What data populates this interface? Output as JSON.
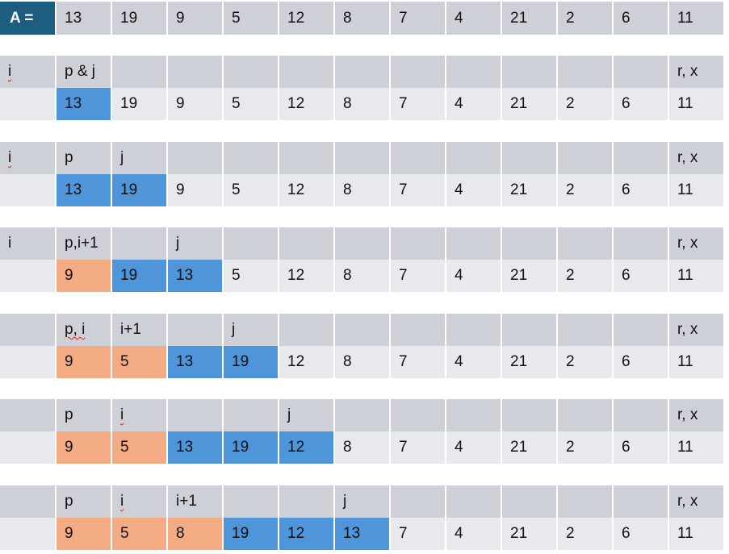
{
  "header_label": "A =",
  "array": [
    "13",
    "19",
    "9",
    "5",
    "12",
    "8",
    "7",
    "4",
    "21",
    "2",
    "6",
    "11"
  ],
  "colors": {
    "header": "#1d5d80",
    "pointer_row": "#cdd1d7",
    "value_row": "#e7e9ec",
    "blue": "#4e95d9",
    "orange": "#f3ab84"
  },
  "steps": [
    {
      "pointers": [
        "i",
        "p & j",
        "",
        "",
        "",
        "",
        "",
        "",
        "",
        "",
        "",
        "",
        "r, x"
      ],
      "squiggly": [
        0
      ],
      "values": [
        "",
        "13",
        "19",
        "9",
        "5",
        "12",
        "8",
        "7",
        "4",
        "21",
        "2",
        "6",
        "11"
      ],
      "highlight": [
        "",
        "blue",
        "",
        "",
        "",
        "",
        "",
        "",
        "",
        "",
        "",
        "",
        ""
      ]
    },
    {
      "pointers": [
        "i",
        "p",
        "j",
        "",
        "",
        "",
        "",
        "",
        "",
        "",
        "",
        "",
        "r, x"
      ],
      "squiggly": [
        0
      ],
      "values": [
        "",
        "13",
        "19",
        "9",
        "5",
        "12",
        "8",
        "7",
        "4",
        "21",
        "2",
        "6",
        "11"
      ],
      "highlight": [
        "",
        "blue",
        "blue",
        "",
        "",
        "",
        "",
        "",
        "",
        "",
        "",
        "",
        ""
      ]
    },
    {
      "pointers": [
        "i",
        "p,i+1",
        "",
        "j",
        "",
        "",
        "",
        "",
        "",
        "",
        "",
        "",
        "r, x"
      ],
      "squiggly": [],
      "values": [
        "",
        "9",
        "19",
        "13",
        "5",
        "12",
        "8",
        "7",
        "4",
        "21",
        "2",
        "6",
        "11"
      ],
      "highlight": [
        "",
        "orange",
        "blue",
        "blue",
        "",
        "",
        "",
        "",
        "",
        "",
        "",
        "",
        ""
      ]
    },
    {
      "pointers": [
        "",
        "p, i",
        "i+1",
        "",
        "j",
        "",
        "",
        "",
        "",
        "",
        "",
        "",
        "r, x"
      ],
      "squiggly": [
        1
      ],
      "values": [
        "",
        "9",
        "5",
        "13",
        "19",
        "12",
        "8",
        "7",
        "4",
        "21",
        "2",
        "6",
        "11"
      ],
      "highlight": [
        "",
        "orange",
        "orange",
        "blue",
        "blue",
        "",
        "",
        "",
        "",
        "",
        "",
        "",
        ""
      ]
    },
    {
      "pointers": [
        "",
        "p",
        "i",
        "",
        "",
        "j",
        "",
        "",
        "",
        "",
        "",
        "",
        "r, x"
      ],
      "squiggly": [
        2
      ],
      "values": [
        "",
        "9",
        "5",
        "13",
        "19",
        "12",
        "8",
        "7",
        "4",
        "21",
        "2",
        "6",
        "11"
      ],
      "highlight": [
        "",
        "orange",
        "orange",
        "blue",
        "blue",
        "blue",
        "",
        "",
        "",
        "",
        "",
        "",
        ""
      ]
    },
    {
      "pointers": [
        "",
        "p",
        "i",
        "i+1",
        "",
        "",
        "j",
        "",
        "",
        "",
        "",
        "",
        "r, x"
      ],
      "squiggly": [
        2
      ],
      "values": [
        "",
        "9",
        "5",
        "8",
        "19",
        "12",
        "13",
        "7",
        "4",
        "21",
        "2",
        "6",
        "11"
      ],
      "highlight": [
        "",
        "orange",
        "orange",
        "orange",
        "blue",
        "blue",
        "blue",
        "",
        "",
        "",
        "",
        "",
        ""
      ]
    }
  ]
}
